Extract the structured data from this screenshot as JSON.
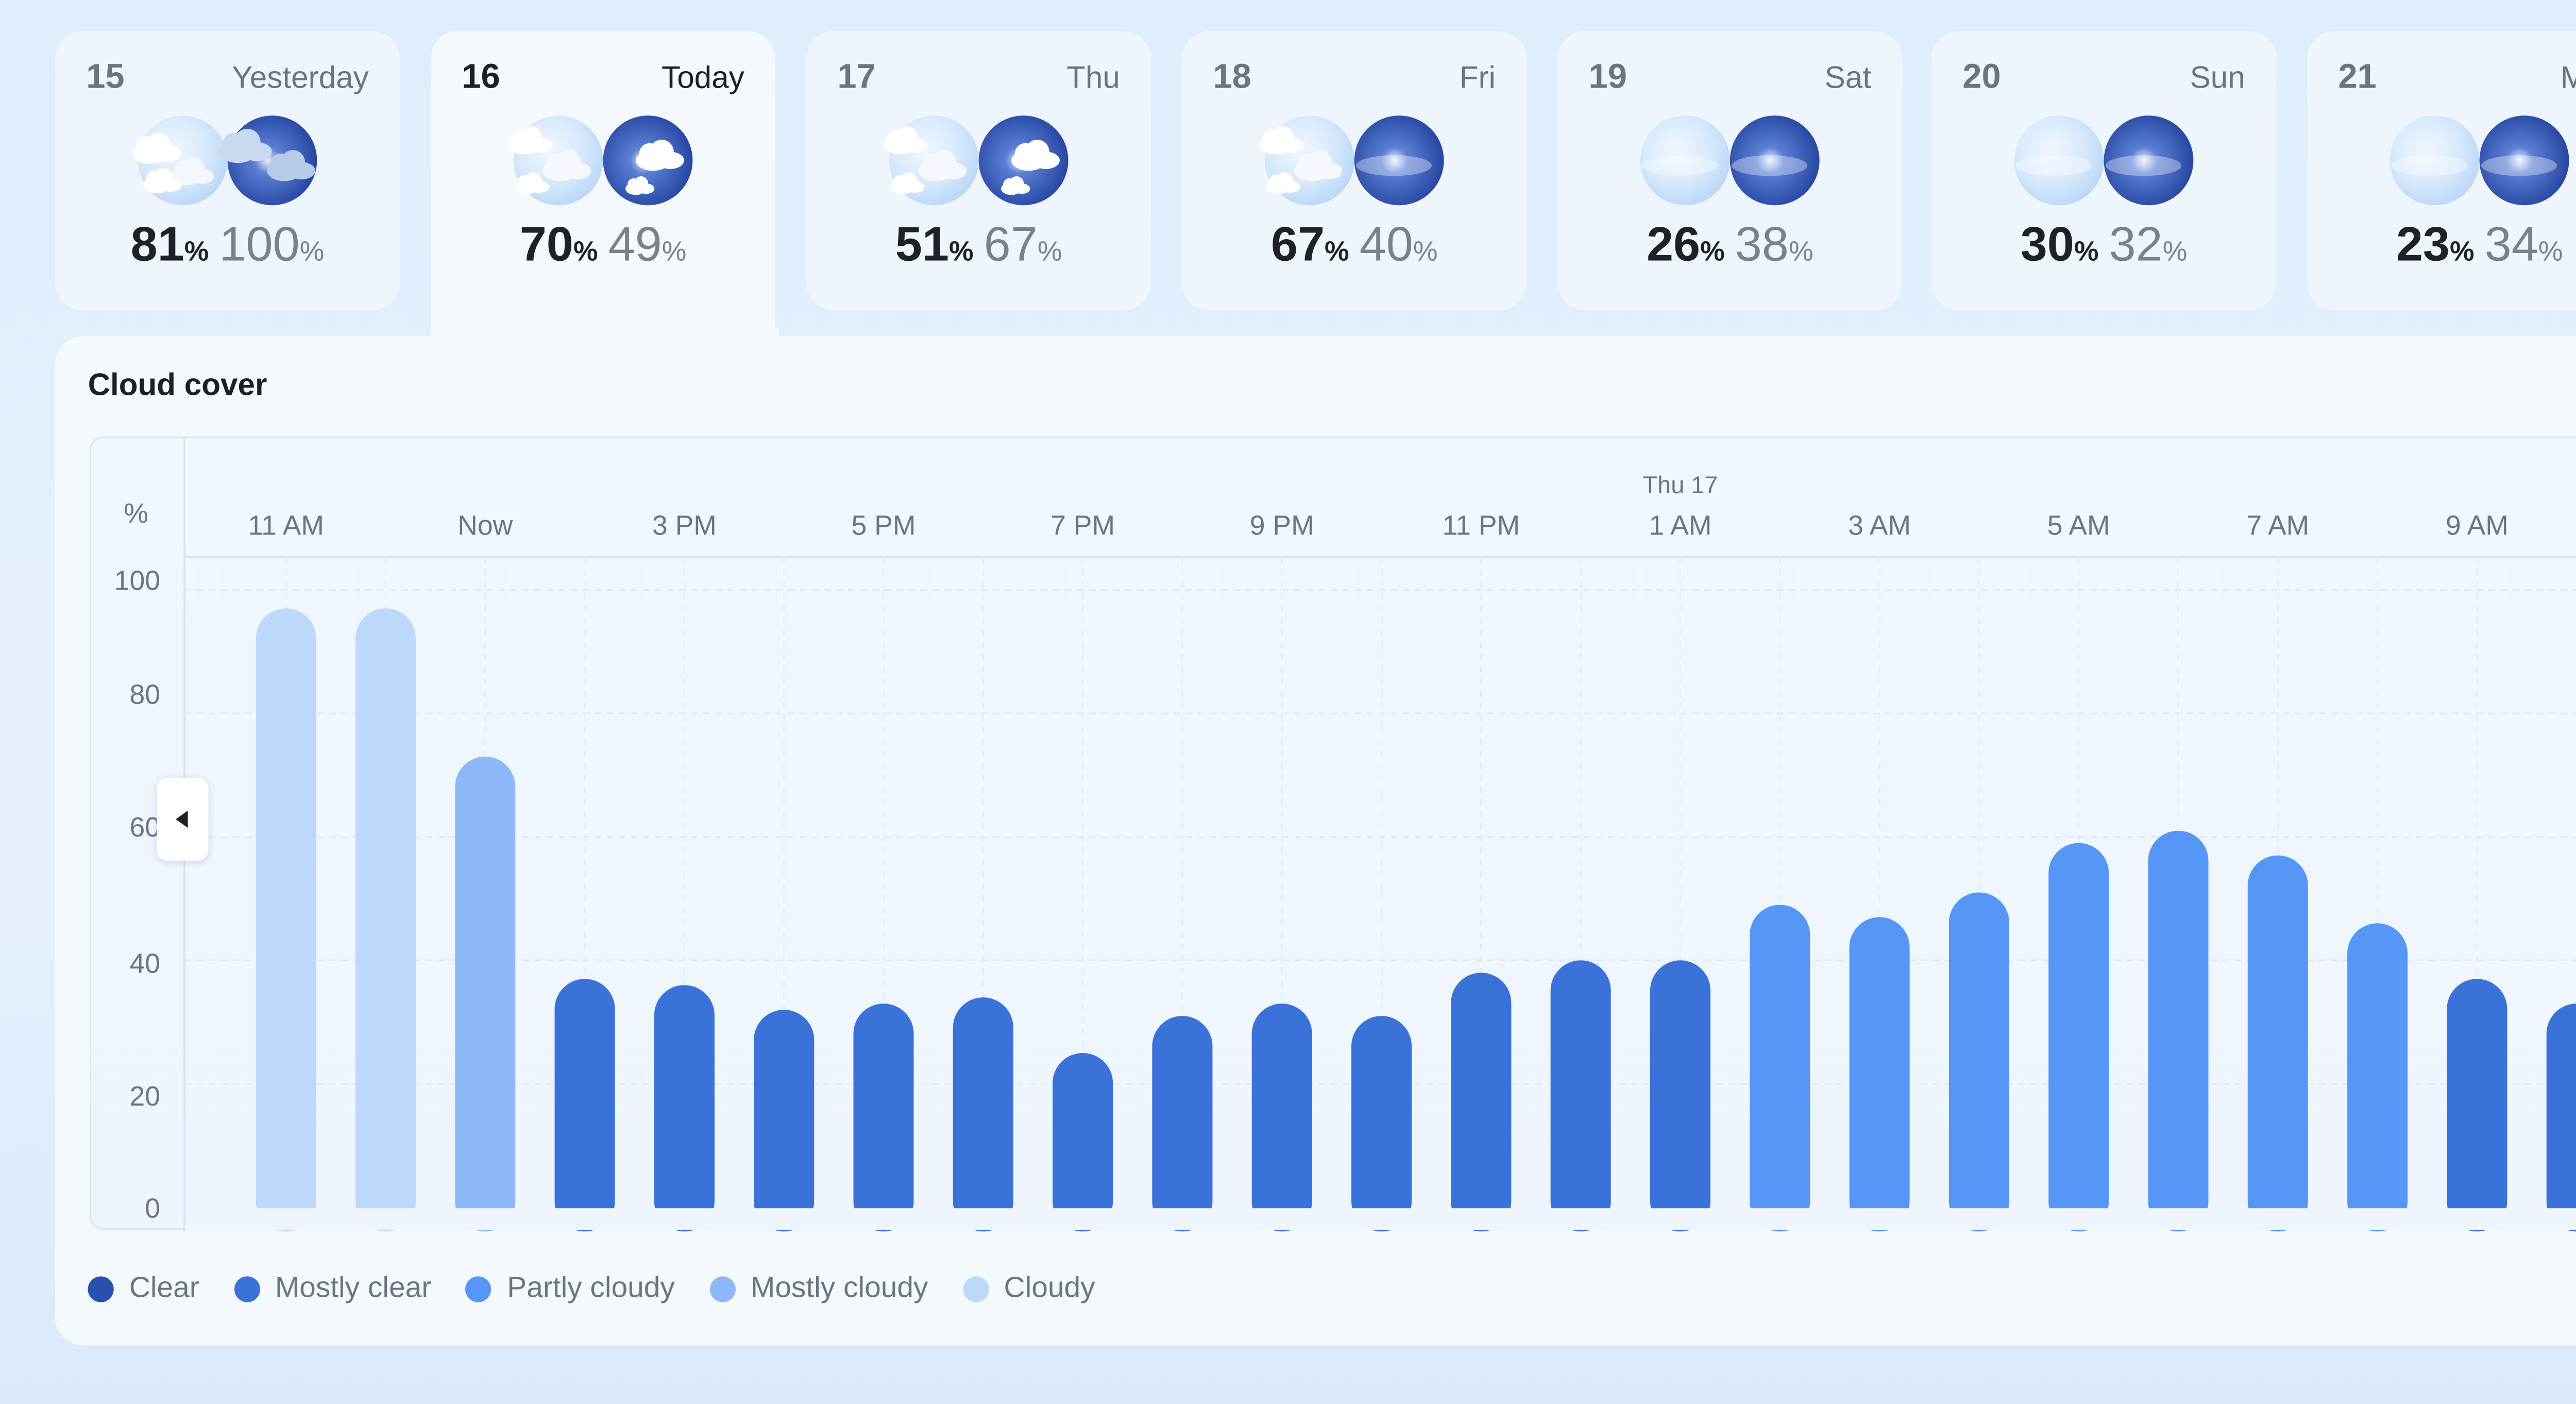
{
  "days": [
    {
      "num": "15",
      "name": "Yesterday",
      "day_pct": "81",
      "night_pct": "100",
      "unit": "%",
      "day_icon": "cloudy-sun-icon",
      "night_icon": "cloudy-moon-icon",
      "active": false
    },
    {
      "num": "16",
      "name": "Today",
      "day_pct": "70",
      "night_pct": "49",
      "unit": "%",
      "day_icon": "mostly-cloudy-sun-icon",
      "night_icon": "partly-cloudy-moon-icon",
      "active": true
    },
    {
      "num": "17",
      "name": "Thu",
      "day_pct": "51",
      "night_pct": "67",
      "unit": "%",
      "day_icon": "mostly-cloudy-sun-icon",
      "night_icon": "partly-cloudy-moon-icon",
      "active": false
    },
    {
      "num": "18",
      "name": "Fri",
      "day_pct": "67",
      "night_pct": "40",
      "unit": "%",
      "day_icon": "mostly-cloudy-sun-icon",
      "night_icon": "hazy-moon-icon",
      "active": false
    },
    {
      "num": "19",
      "name": "Sat",
      "day_pct": "26",
      "night_pct": "38",
      "unit": "%",
      "day_icon": "hazy-sun-icon",
      "night_icon": "hazy-moon-icon",
      "active": false
    },
    {
      "num": "20",
      "name": "Sun",
      "day_pct": "30",
      "night_pct": "32",
      "unit": "%",
      "day_icon": "hazy-sun-icon",
      "night_icon": "hazy-moon-icon",
      "active": false
    },
    {
      "num": "21",
      "name": "Mon",
      "day_pct": "23",
      "night_pct": "34",
      "unit": "%",
      "day_icon": "hazy-sun-icon",
      "night_icon": "hazy-moon-icon",
      "active": false
    }
  ],
  "panel": {
    "title": "Cloud cover"
  },
  "legend": [
    {
      "label": "Clear",
      "color": "#2a4fae"
    },
    {
      "label": "Mostly clear",
      "color": "#3a72d9"
    },
    {
      "label": "Partly cloudy",
      "color": "#5596f7"
    },
    {
      "label": "Mostly cloudy",
      "color": "#8fb8f8"
    },
    {
      "label": "Cloudy",
      "color": "#bdd8fb"
    }
  ],
  "chart_data": {
    "type": "bar",
    "title": "Cloud cover",
    "ylabel": "%",
    "ylim": [
      0,
      100
    ],
    "yticks": [
      0,
      20,
      40,
      60,
      80,
      100
    ],
    "grid": true,
    "day_marker": {
      "label": "Thu 17",
      "at": "1 AM"
    },
    "x_tick_labels": [
      "11 AM",
      "Now",
      "3 PM",
      "5 PM",
      "7 PM",
      "9 PM",
      "11 PM",
      "1 AM",
      "3 AM",
      "5 AM",
      "7 AM",
      "9 AM"
    ],
    "values": [
      97,
      97,
      73,
      37,
      36,
      32,
      33,
      34,
      25,
      31,
      33,
      31,
      38,
      40,
      40,
      49,
      47,
      51,
      59,
      61,
      57,
      46,
      37,
      33
    ],
    "categories_color": [
      "Cloudy",
      "Cloudy",
      "Mostly cloudy",
      "Mostly clear",
      "Mostly clear",
      "Mostly clear",
      "Mostly clear",
      "Mostly clear",
      "Mostly clear",
      "Mostly clear",
      "Mostly clear",
      "Mostly clear",
      "Mostly clear",
      "Mostly clear",
      "Mostly clear",
      "Partly cloudy",
      "Partly cloudy",
      "Partly cloudy",
      "Partly cloudy",
      "Partly cloudy",
      "Partly cloudy",
      "Partly cloudy",
      "Mostly clear",
      "Mostly clear"
    ]
  }
}
